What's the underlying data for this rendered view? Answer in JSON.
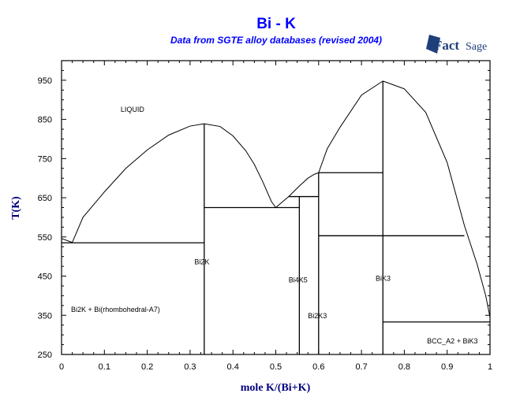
{
  "chart_data": {
    "type": "line",
    "title": "Bi - K",
    "subtitle": "Data from SGTE alloy databases (revised 2004)",
    "logo_text": "FactSage",
    "xlabel": "mole K/(Bi+K)",
    "ylabel": "T(K)",
    "xlim": [
      0,
      1
    ],
    "ylim": [
      250,
      1000
    ],
    "xticks": [
      "0",
      "0.1",
      "0.2",
      "0.3",
      "0.4",
      "0.5",
      "0.6",
      "0.7",
      "0.8",
      "0.9",
      "1"
    ],
    "yticks": [
      "250",
      "350",
      "450",
      "550",
      "650",
      "750",
      "850",
      "950"
    ],
    "grid": false,
    "colors": {
      "title": "#0000ff",
      "axis_label": "#000080",
      "lines": "#000000"
    },
    "curves": [
      {
        "x": [
          0,
          0.025
        ],
        "y": [
          546,
          536
        ]
      },
      {
        "x": [
          0.025,
          0.05,
          0.1,
          0.15,
          0.2,
          0.25,
          0.3,
          0.333
        ],
        "y": [
          536,
          600,
          665,
          725,
          772,
          810,
          833,
          839
        ]
      },
      {
        "x": [
          0.333,
          0.37,
          0.4,
          0.43,
          0.45,
          0.47,
          0.49,
          0.5
        ],
        "y": [
          839,
          832,
          808,
          770,
          735,
          690,
          640,
          625
        ]
      },
      {
        "x": [
          0.5,
          0.53,
          0.555,
          0.575,
          0.59,
          0.6
        ],
        "y": [
          625,
          653,
          680,
          700,
          710,
          714
        ]
      },
      {
        "x": [
          0.6,
          0.62,
          0.65,
          0.7,
          0.75
        ],
        "y": [
          714,
          775,
          830,
          912,
          948
        ]
      },
      {
        "x": [
          0.75,
          0.8,
          0.85,
          0.9,
          0.94,
          0.97,
          0.99,
          1.0
        ],
        "y": [
          948,
          928,
          868,
          740,
          580,
          480,
          400,
          345
        ]
      }
    ],
    "horizontal_lines": [
      {
        "y": 535,
        "x": [
          0,
          0.333
        ]
      },
      {
        "y": 625,
        "x": [
          0.333,
          0.555
        ]
      },
      {
        "y": 653,
        "x": [
          0.53,
          0.6
        ]
      },
      {
        "y": 714,
        "x": [
          0.6,
          0.75
        ]
      },
      {
        "y": 553,
        "x": [
          0.6,
          0.94
        ]
      },
      {
        "y": 333,
        "x": [
          0.75,
          1.0
        ]
      }
    ],
    "vertical_lines": [
      {
        "x": 0.333,
        "y": [
          250,
          839
        ]
      },
      {
        "x": 0.555,
        "y": [
          250,
          653
        ]
      },
      {
        "x": 0.6,
        "y": [
          250,
          714
        ]
      },
      {
        "x": 0.75,
        "y": [
          250,
          948
        ]
      }
    ],
    "annotations": [
      {
        "text": "LIQUID",
        "x": 0.138,
        "y": 877
      },
      {
        "text": "Bi2K",
        "x": 0.31,
        "y": 488
      },
      {
        "text": "Bi4K5",
        "x": 0.53,
        "y": 442
      },
      {
        "text": "Bi2K3",
        "x": 0.575,
        "y": 351
      },
      {
        "text": "BiK3",
        "x": 0.733,
        "y": 446
      },
      {
        "text": "Bi2K + Bi(rhombohedral-A7)",
        "x": 0.022,
        "y": 367
      },
      {
        "text": "BCC_A2 + BiK3",
        "x": 0.853,
        "y": 286
      }
    ]
  }
}
